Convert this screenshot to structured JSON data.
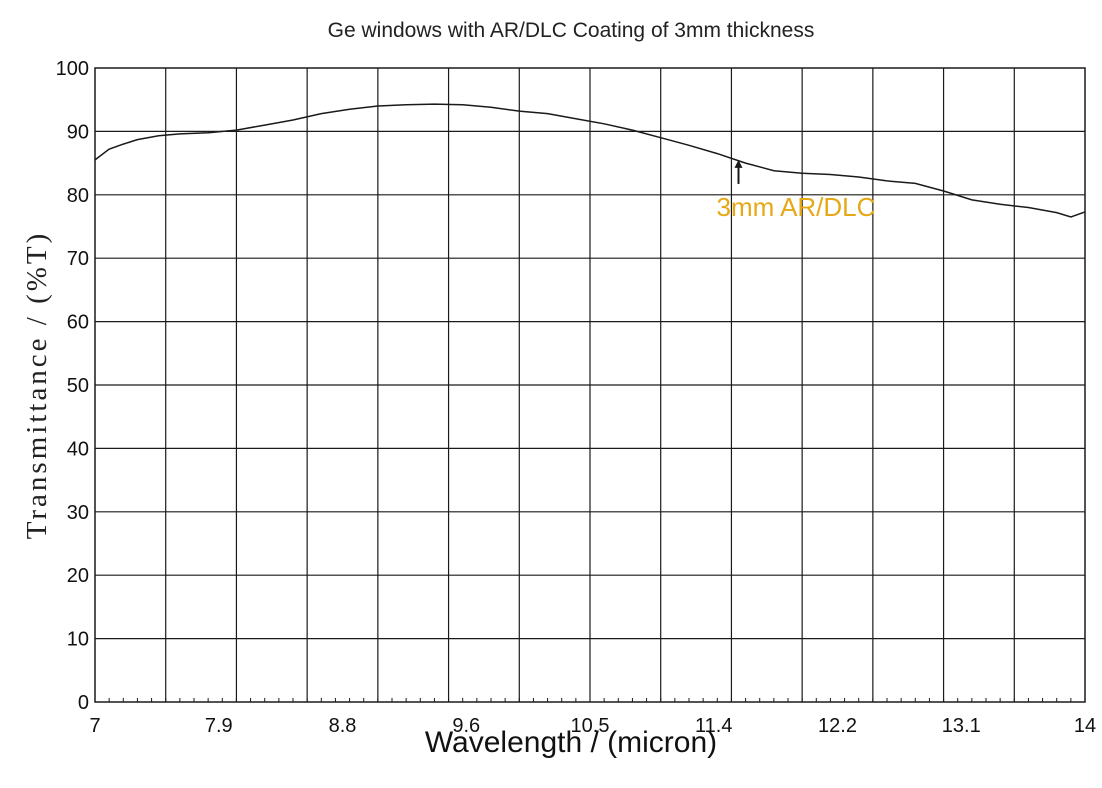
{
  "chart_data": {
    "type": "line",
    "title": "Ge windows with AR/DLC Coating of 3mm thickness",
    "xlabel": "Wavelength / (micron)",
    "ylabel": "Transmittance / (%T)",
    "xlim": [
      7,
      14
    ],
    "ylim": [
      0,
      100
    ],
    "x_ticks": [
      "7",
      "7.9",
      "8.8",
      "9.6",
      "10.5",
      "11.4",
      "12.2",
      "13.1",
      "14"
    ],
    "y_ticks": [
      "0",
      "10",
      "20",
      "30",
      "40",
      "50",
      "60",
      "70",
      "80",
      "90",
      "100"
    ],
    "grid": true,
    "series": [
      {
        "name": "3mm AR/DLC",
        "x": [
          7.0,
          7.1,
          7.2,
          7.3,
          7.45,
          7.6,
          7.8,
          8.0,
          8.2,
          8.4,
          8.6,
          8.8,
          9.0,
          9.2,
          9.4,
          9.6,
          9.8,
          10.0,
          10.2,
          10.4,
          10.6,
          10.8,
          11.0,
          11.2,
          11.4,
          11.6,
          11.8,
          12.0,
          12.2,
          12.4,
          12.6,
          12.8,
          13.0,
          13.2,
          13.4,
          13.6,
          13.8,
          13.9,
          14.0
        ],
        "values": [
          85.5,
          87.2,
          88.0,
          88.7,
          89.3,
          89.6,
          89.8,
          90.2,
          91.0,
          91.8,
          92.8,
          93.5,
          94.0,
          94.2,
          94.3,
          94.2,
          93.8,
          93.2,
          92.8,
          92.0,
          91.2,
          90.2,
          89.0,
          87.8,
          86.5,
          85.0,
          83.8,
          83.4,
          83.2,
          82.8,
          82.2,
          81.8,
          80.6,
          79.2,
          78.5,
          78.0,
          77.2,
          76.5,
          77.3
        ]
      }
    ],
    "annotation": {
      "text": "3mm AR/DLC",
      "arrow_x": 11.55,
      "arrow_y": 85.5,
      "color": "#e6a817"
    },
    "colors": {
      "line": "#1a1a1a",
      "grid": "#1a1a1a",
      "annotation": "#e6a817"
    }
  }
}
